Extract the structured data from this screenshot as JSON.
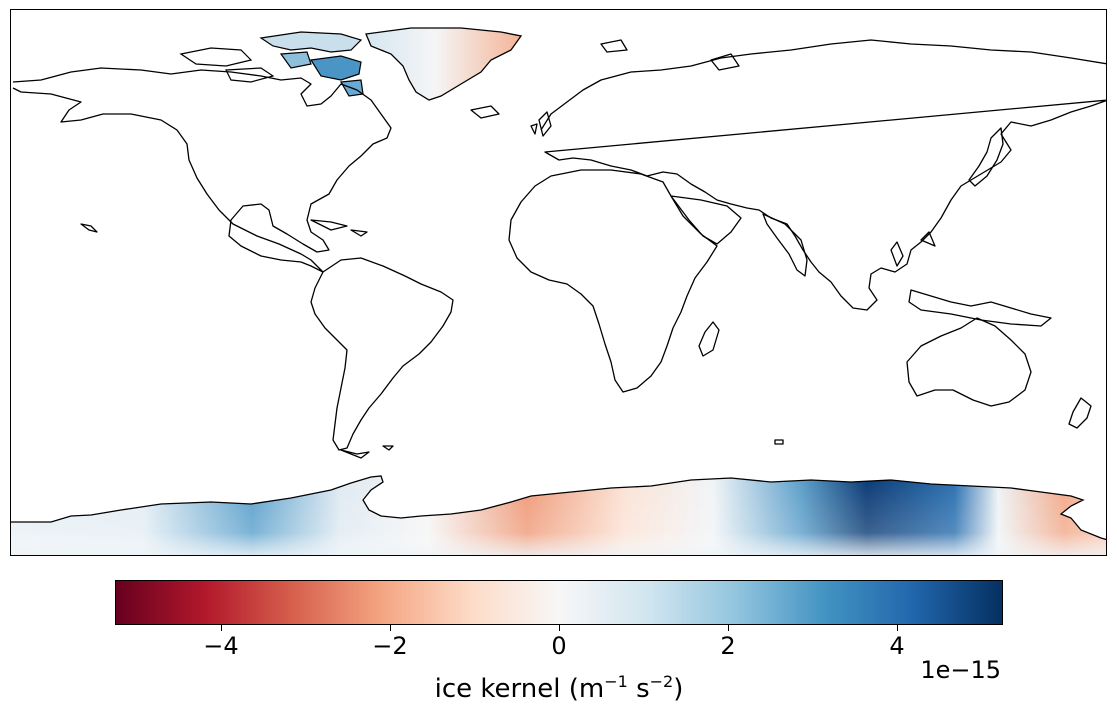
{
  "colorbar": {
    "label_text": "ice kernel (m",
    "label_exp1": "−1",
    "label_mid": " s",
    "label_exp2": "−2",
    "label_end": ")",
    "offset_text": "1e−15",
    "ticks": [
      "−4",
      "−2",
      "0",
      "2",
      "4"
    ],
    "tick_values": [
      -4,
      -2,
      0,
      2,
      4
    ],
    "range": [
      -5.25,
      5.25
    ],
    "colormap": [
      "#67001f",
      "#b2182b",
      "#d6604d",
      "#f4a582",
      "#fddbc7",
      "#f7f7f7",
      "#d1e5f0",
      "#92c5de",
      "#4393c3",
      "#2166ac",
      "#053061"
    ]
  },
  "map": {
    "projection": "plate-carree",
    "field_name": "ice kernel"
  }
}
